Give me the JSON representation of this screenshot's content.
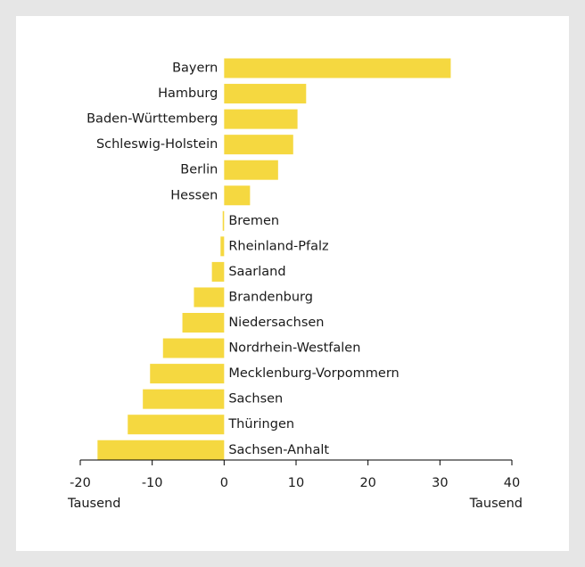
{
  "chart_data": {
    "type": "bar",
    "orientation": "horizontal",
    "categories": [
      "Bayern",
      "Hamburg",
      "Baden-Württemberg",
      "Schleswig-Holstein",
      "Berlin",
      "Hessen",
      "Bremen",
      "Rheinland-Pfalz",
      "Saarland",
      "Brandenburg",
      "Niedersachsen",
      "Nordrhein-Westfalen",
      "Mecklenburg-Vorpommern",
      "Sachsen",
      "Thüringen",
      "Sachsen-Anhalt"
    ],
    "values": [
      31.5,
      11.4,
      10.2,
      9.6,
      7.5,
      3.6,
      -0.2,
      -0.5,
      -1.7,
      -4.2,
      -5.8,
      -8.5,
      -10.3,
      -11.3,
      -13.4,
      -17.6
    ],
    "xlim": [
      -20,
      40
    ],
    "xticks": [
      -20,
      -10,
      0,
      10,
      20,
      30,
      40
    ],
    "xtick_labels": [
      "-20",
      "-10",
      "0",
      "10",
      "20",
      "30",
      "40"
    ],
    "unit_left": "Tausend",
    "unit_right": "Tausend",
    "title": "",
    "xlabel": "",
    "ylabel": "",
    "grid": false,
    "bar_color": "#f5d840"
  }
}
